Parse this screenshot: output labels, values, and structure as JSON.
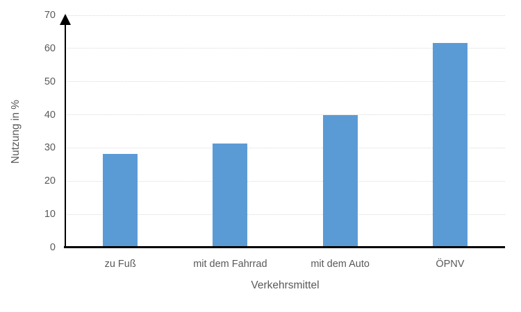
{
  "chart_data": {
    "type": "bar",
    "title": "",
    "categories": [
      "zu Fuß",
      "mit dem Fahrrad",
      "mit dem Auto",
      "ÖPNV"
    ],
    "values": [
      28.3,
      31.3,
      40,
      61.7
    ],
    "xlabel": "Verkehrsmittel",
    "ylabel": "Nutzung in %",
    "ylim": [
      0,
      70
    ],
    "yticks": [
      0,
      10,
      20,
      30,
      40,
      50,
      60,
      70
    ],
    "grid": "horizontal-dotted",
    "legend_position": "none",
    "colors": {
      "bar": "#5B9BD5",
      "axis": "#000000",
      "gridline": "#D9D9D9",
      "text": "#595959",
      "background": "#FFFFFF"
    }
  }
}
